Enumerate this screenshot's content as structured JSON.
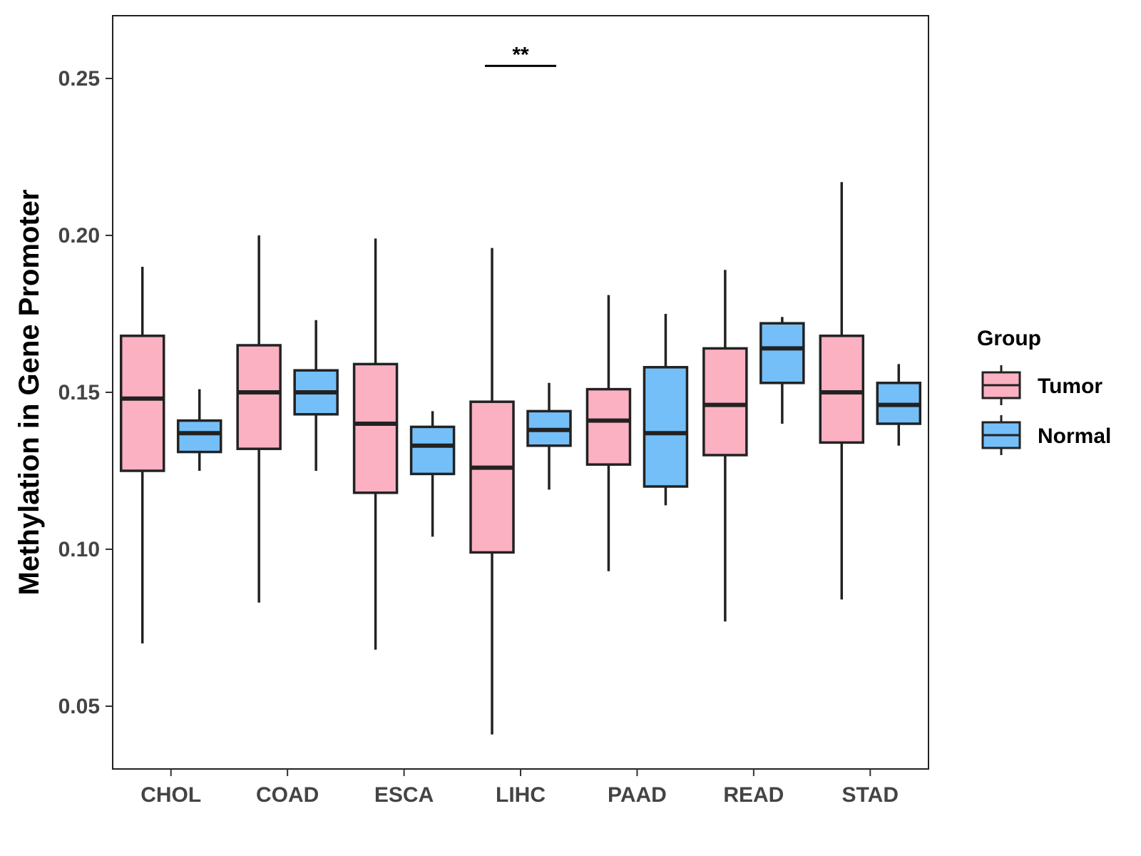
{
  "chart_data": {
    "type": "boxplot",
    "title": "",
    "xlabel": "",
    "ylabel": "Methylation in Gene Promoter",
    "ylim": [
      0.03,
      0.27
    ],
    "yticks": [
      0.05,
      0.1,
      0.15,
      0.2,
      0.25
    ],
    "ytick_labels": [
      "0.05",
      "0.10",
      "0.15",
      "0.20",
      "0.25"
    ],
    "categories": [
      "CHOL",
      "COAD",
      "ESCA",
      "LIHC",
      "PAAD",
      "READ",
      "STAD"
    ],
    "grid": false,
    "legend": {
      "title": "Group",
      "position": "right",
      "entries": [
        "Tumor",
        "Normal"
      ]
    },
    "series": [
      {
        "name": "Tumor",
        "color": "#FBB1C2",
        "boxes": [
          {
            "category": "CHOL",
            "min": 0.07,
            "q1": 0.125,
            "median": 0.148,
            "q3": 0.168,
            "max": 0.19
          },
          {
            "category": "COAD",
            "min": 0.083,
            "q1": 0.132,
            "median": 0.15,
            "q3": 0.165,
            "max": 0.2
          },
          {
            "category": "ESCA",
            "min": 0.068,
            "q1": 0.118,
            "median": 0.14,
            "q3": 0.159,
            "max": 0.199
          },
          {
            "category": "LIHC",
            "min": 0.041,
            "q1": 0.099,
            "median": 0.126,
            "q3": 0.147,
            "max": 0.196
          },
          {
            "category": "PAAD",
            "min": 0.093,
            "q1": 0.127,
            "median": 0.141,
            "q3": 0.151,
            "max": 0.181
          },
          {
            "category": "READ",
            "min": 0.077,
            "q1": 0.13,
            "median": 0.146,
            "q3": 0.164,
            "max": 0.189
          },
          {
            "category": "STAD",
            "min": 0.084,
            "q1": 0.134,
            "median": 0.15,
            "q3": 0.168,
            "max": 0.217
          }
        ]
      },
      {
        "name": "Normal",
        "color": "#74BFF8",
        "boxes": [
          {
            "category": "CHOL",
            "min": 0.125,
            "q1": 0.131,
            "median": 0.137,
            "q3": 0.141,
            "max": 0.151
          },
          {
            "category": "COAD",
            "min": 0.125,
            "q1": 0.143,
            "median": 0.15,
            "q3": 0.157,
            "max": 0.173
          },
          {
            "category": "ESCA",
            "min": 0.104,
            "q1": 0.124,
            "median": 0.133,
            "q3": 0.139,
            "max": 0.144
          },
          {
            "category": "LIHC",
            "min": 0.119,
            "q1": 0.133,
            "median": 0.138,
            "q3": 0.144,
            "max": 0.153
          },
          {
            "category": "PAAD",
            "min": 0.114,
            "q1": 0.12,
            "median": 0.137,
            "q3": 0.158,
            "max": 0.175
          },
          {
            "category": "READ",
            "min": 0.14,
            "q1": 0.153,
            "median": 0.164,
            "q3": 0.172,
            "max": 0.174
          },
          {
            "category": "STAD",
            "min": 0.133,
            "q1": 0.14,
            "median": 0.146,
            "q3": 0.153,
            "max": 0.159
          }
        ]
      }
    ],
    "annotations": [
      {
        "category": "LIHC",
        "text": "**",
        "y": 0.254
      }
    ]
  }
}
